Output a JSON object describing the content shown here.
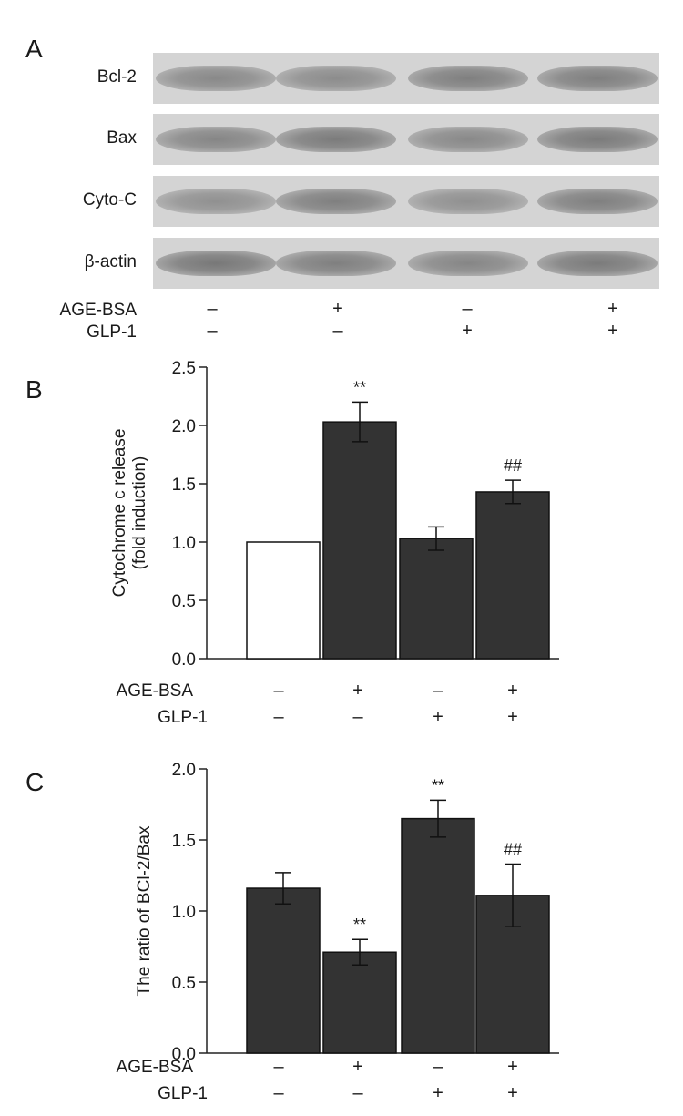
{
  "panel_a": {
    "letter": "A",
    "blots": [
      {
        "label": "Bcl-2",
        "intensity": [
          0.55,
          0.5,
          0.7,
          0.7
        ]
      },
      {
        "label": "Bax",
        "intensity": [
          0.6,
          0.75,
          0.55,
          0.75
        ]
      },
      {
        "label": "Cyto-C",
        "intensity": [
          0.45,
          0.7,
          0.45,
          0.7
        ]
      },
      {
        "label": "β-actin",
        "intensity": [
          0.8,
          0.7,
          0.6,
          0.75
        ]
      }
    ],
    "conditions": [
      {
        "label": "AGE-BSA",
        "signs": [
          "–",
          "+",
          "–",
          "+"
        ]
      },
      {
        "label": "GLP-1",
        "signs": [
          "–",
          "–",
          "+",
          "+"
        ]
      }
    ]
  },
  "chart_data": [
    {
      "panel": "B",
      "type": "bar",
      "ylabel_line1": "Cytochrome c release",
      "ylabel_line2": "(fold induction)",
      "ylim": [
        0,
        2.5
      ],
      "yticks": [
        "0.0",
        "0.5",
        "1.0",
        "1.5",
        "2.0",
        "2.5"
      ],
      "values": [
        1.0,
        2.03,
        1.03,
        1.43
      ],
      "errors": [
        0.0,
        0.17,
        0.1,
        0.1
      ],
      "annotations": [
        "",
        "**",
        "",
        "##"
      ],
      "fills": [
        "#ffffff",
        "#333333",
        "#333333",
        "#333333"
      ],
      "conditions": [
        {
          "label": "AGE-BSA",
          "signs": [
            "–",
            "+",
            "–",
            "+"
          ]
        },
        {
          "label": "GLP-1",
          "signs": [
            "–",
            "–",
            "+",
            "+"
          ]
        }
      ]
    },
    {
      "panel": "C",
      "type": "bar",
      "ylabel_line1": "The ratio of BCl-2/Bax",
      "ylabel_line2": "",
      "ylim": [
        0,
        2.0
      ],
      "yticks": [
        "0.0",
        "0.5",
        "1.0",
        "1.5",
        "2.0"
      ],
      "values": [
        1.16,
        0.71,
        1.65,
        1.11
      ],
      "errors": [
        0.11,
        0.09,
        0.13,
        0.22
      ],
      "annotations": [
        "",
        "**",
        "**",
        "##"
      ],
      "fills": [
        "#333333",
        "#333333",
        "#333333",
        "#333333"
      ],
      "conditions": [
        {
          "label": "AGE-BSA",
          "signs": [
            "–",
            "+",
            "–",
            "+"
          ]
        },
        {
          "label": "GLP-1",
          "signs": [
            "–",
            "–",
            "+",
            "+"
          ]
        }
      ]
    }
  ]
}
